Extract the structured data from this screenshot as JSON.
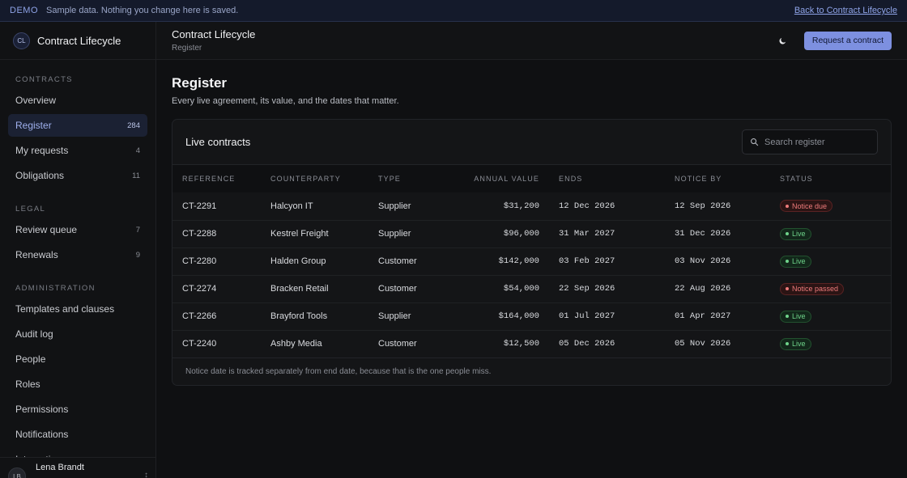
{
  "banner": {
    "tag": "DEMO",
    "message": "Sample data. Nothing you change here is saved.",
    "back_link": "Back to Contract Lifecycle"
  },
  "brand": {
    "initials": "CL",
    "name": "Contract Lifecycle"
  },
  "sidebar": {
    "groups": [
      {
        "label": "CONTRACTS",
        "items": [
          {
            "label": "Overview",
            "count": ""
          },
          {
            "label": "Register",
            "count": "284",
            "active": true
          },
          {
            "label": "My requests",
            "count": "4"
          },
          {
            "label": "Obligations",
            "count": "11"
          }
        ]
      },
      {
        "label": "LEGAL",
        "items": [
          {
            "label": "Review queue",
            "count": "7"
          },
          {
            "label": "Renewals",
            "count": "9"
          }
        ]
      },
      {
        "label": "ADMINISTRATION",
        "items": [
          {
            "label": "Templates and clauses",
            "count": ""
          },
          {
            "label": "Audit log",
            "count": ""
          },
          {
            "label": "People",
            "count": ""
          },
          {
            "label": "Roles",
            "count": ""
          },
          {
            "label": "Permissions",
            "count": ""
          },
          {
            "label": "Notifications",
            "count": ""
          },
          {
            "label": "Integrations",
            "count": ""
          }
        ]
      }
    ],
    "user": {
      "initials": "LB",
      "name": "Lena Brandt"
    }
  },
  "topbar": {
    "title": "Contract Lifecycle",
    "breadcrumb": "Register",
    "theme_icon": "moon-icon",
    "cta_label": "Request a contract"
  },
  "page": {
    "title": "Register",
    "subtitle": "Every live agreement, its value, and the dates that matter."
  },
  "card": {
    "title": "Live contracts",
    "search_placeholder": "Search register",
    "columns": [
      "REFERENCE",
      "COUNTERPARTY",
      "TYPE",
      "ANNUAL VALUE",
      "ENDS",
      "NOTICE BY",
      "STATUS"
    ],
    "rows": [
      {
        "ref": "CT-2291",
        "counterparty": "Halcyon IT",
        "type": "Supplier",
        "value": "$31,200",
        "ends": "12 Dec 2026",
        "notice": "12 Sep 2026",
        "status": "Notice due",
        "tone": "bad"
      },
      {
        "ref": "CT-2288",
        "counterparty": "Kestrel Freight",
        "type": "Supplier",
        "value": "$96,000",
        "ends": "31 Mar 2027",
        "notice": "31 Dec 2026",
        "status": "Live",
        "tone": "live"
      },
      {
        "ref": "CT-2280",
        "counterparty": "Halden Group",
        "type": "Customer",
        "value": "$142,000",
        "ends": "03 Feb 2027",
        "notice": "03 Nov 2026",
        "status": "Live",
        "tone": "live"
      },
      {
        "ref": "CT-2274",
        "counterparty": "Bracken Retail",
        "type": "Customer",
        "value": "$54,000",
        "ends": "22 Sep 2026",
        "notice": "22 Aug 2026",
        "status": "Notice passed",
        "tone": "bad"
      },
      {
        "ref": "CT-2266",
        "counterparty": "Brayford Tools",
        "type": "Supplier",
        "value": "$164,000",
        "ends": "01 Jul 2027",
        "notice": "01 Apr 2027",
        "status": "Live",
        "tone": "live"
      },
      {
        "ref": "CT-2240",
        "counterparty": "Ashby Media",
        "type": "Customer",
        "value": "$12,500",
        "ends": "05 Dec 2026",
        "notice": "05 Nov 2026",
        "status": "Live",
        "tone": "live"
      }
    ],
    "footnote": "Notice date is tracked separately from end date, because that is the one people miss."
  },
  "colors": {
    "accent": "#7d90e0",
    "live": "#6fd48b",
    "warning": "#ee7b7b"
  }
}
